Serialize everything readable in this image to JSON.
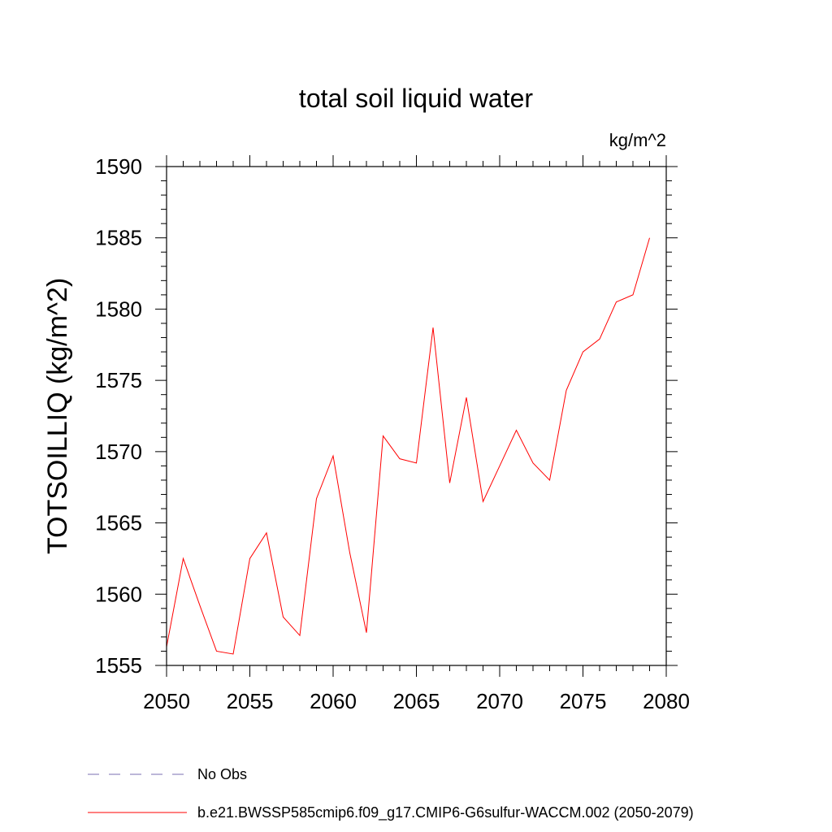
{
  "chart_data": {
    "type": "line",
    "title": "total soil liquid water",
    "units_label": "kg/m^2",
    "xlabel": "",
    "ylabel": "TOTSOILLIQ  (kg/m^2)",
    "xlim": [
      2050,
      2080
    ],
    "ylim": [
      1555,
      1590
    ],
    "x_ticks": [
      2050,
      2055,
      2060,
      2065,
      2070,
      2075,
      2080
    ],
    "y_ticks": [
      1555,
      1560,
      1565,
      1570,
      1575,
      1580,
      1585,
      1590
    ],
    "x_tick_labels": [
      "2050",
      "2055",
      "2060",
      "2065",
      "2070",
      "2075",
      "2080"
    ],
    "y_tick_labels": [
      "1555",
      "1560",
      "1565",
      "1570",
      "1575",
      "1580",
      "1585",
      "1590"
    ],
    "x": [
      2050,
      2051,
      2052,
      2053,
      2054,
      2055,
      2056,
      2057,
      2058,
      2059,
      2060,
      2061,
      2062,
      2063,
      2064,
      2065,
      2066,
      2067,
      2068,
      2069,
      2070,
      2071,
      2072,
      2073,
      2074,
      2075,
      2076,
      2077,
      2078,
      2079
    ],
    "series": [
      {
        "name": "b.e21.BWSSP585cmip6.f09_g17.CMIP6-G6sulfur-WACCM.002 (2050-2079)",
        "color": "#ff0000",
        "values": [
          1556.3,
          1562.5,
          1559.2,
          1556.0,
          1555.8,
          1562.5,
          1564.3,
          1558.4,
          1557.1,
          1566.7,
          1569.7,
          1562.9,
          1557.3,
          1571.1,
          1569.5,
          1569.2,
          1578.7,
          1567.8,
          1573.8,
          1566.5,
          1569.0,
          1571.5,
          1569.2,
          1568.0,
          1574.3,
          1577.0,
          1577.9,
          1580.5,
          1581.0,
          1585.0
        ]
      }
    ],
    "legend": {
      "placement": "bottom",
      "entries": [
        {
          "label": "No Obs",
          "color": "#7a6fb0",
          "style": "dashed"
        },
        {
          "label": "b.e21.BWSSP585cmip6.f09_g17.CMIP6-G6sulfur-WACCM.002 (2050-2079)",
          "color": "#ff0000",
          "style": "solid"
        }
      ]
    },
    "grid": false
  }
}
